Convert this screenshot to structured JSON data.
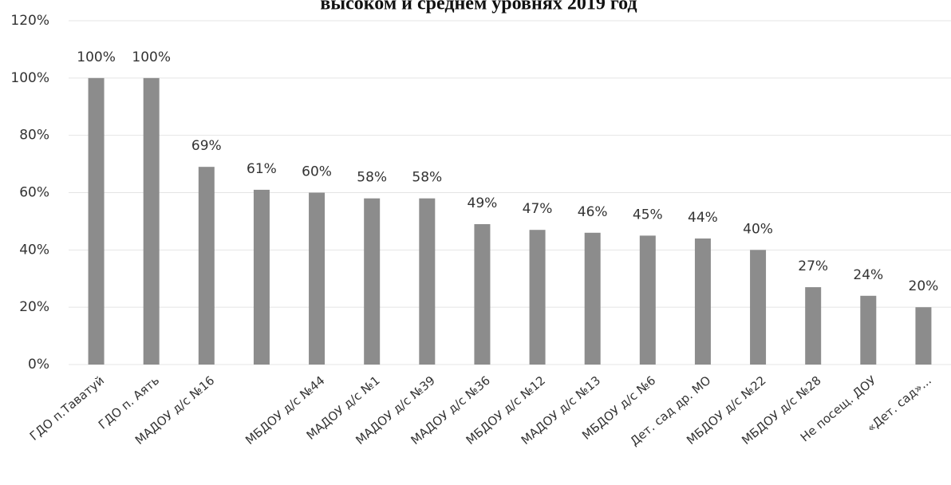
{
  "chart_data": {
    "type": "bar",
    "title": "высоком и среднем уровнях 2019 год",
    "categories": [
      "ГДО п.Таватуй",
      "ГДО п. Аять",
      "МАДОУ д/с №16",
      null,
      "МБДОУ д/с №44",
      "МАДОУ д/с №1",
      "МАДОУ д/с №39",
      "МАДОУ д/с №36",
      "МБДОУ д/с №12",
      "МАДОУ д/с №13",
      "МБДОУ д/с №6",
      "Дет. сад др. МО",
      "МБДОУ д/с №22",
      "МБДОУ д/с №28",
      "Не посещ. ДОУ",
      "«Дет. сад»..."
    ],
    "values": [
      100,
      100,
      69,
      61,
      60,
      58,
      58,
      49,
      47,
      46,
      45,
      44,
      40,
      27,
      24,
      20
    ],
    "value_labels": [
      "100%",
      "100%",
      "69%",
      "61%",
      "60%",
      "58%",
      "58%",
      "49%",
      "47%",
      "46%",
      "45%",
      "44%",
      "40%",
      "27%",
      "24%",
      "20%"
    ],
    "color": "#8c8c8c",
    "ylim": [
      0,
      120
    ],
    "yticks": [
      {
        "value": 0,
        "label": "0%"
      },
      {
        "value": 20,
        "label": "20%"
      },
      {
        "value": 40,
        "label": "40%"
      },
      {
        "value": 60,
        "label": "60%"
      },
      {
        "value": 80,
        "label": "80%"
      },
      {
        "value": 100,
        "label": "100%"
      },
      {
        "value": 120,
        "label": "120%"
      }
    ],
    "grid": true
  }
}
